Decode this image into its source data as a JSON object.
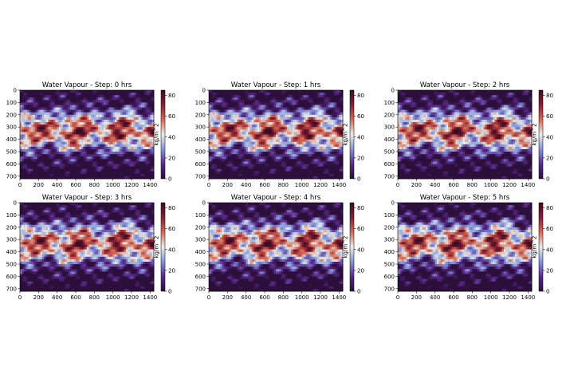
{
  "chart_data": [
    {
      "type": "heatmap",
      "title": "Water Vapour - Step: 0 hrs",
      "step_hours": 0,
      "x_ticks": [
        0,
        200,
        400,
        600,
        800,
        1000,
        1200,
        1400
      ],
      "y_ticks": [
        0,
        100,
        200,
        300,
        400,
        500,
        600,
        700
      ],
      "xlim": [
        0,
        1440
      ],
      "ylim": [
        721,
        0
      ],
      "colorbar": {
        "label": "kg/m^2",
        "ticks": [
          0,
          20,
          40,
          60,
          80
        ],
        "range": [
          0,
          85
        ],
        "colormap": "twilight_shifted"
      }
    },
    {
      "type": "heatmap",
      "title": "Water Vapour - Step: 1 hrs",
      "step_hours": 1,
      "x_ticks": [
        0,
        200,
        400,
        600,
        800,
        1000,
        1200,
        1400
      ],
      "y_ticks": [
        0,
        100,
        200,
        300,
        400,
        500,
        600,
        700
      ],
      "xlim": [
        0,
        1440
      ],
      "ylim": [
        721,
        0
      ],
      "colorbar": {
        "label": "kg/m^2",
        "ticks": [
          0,
          20,
          40,
          60,
          80
        ],
        "range": [
          0,
          85
        ],
        "colormap": "twilight_shifted"
      }
    },
    {
      "type": "heatmap",
      "title": "Water Vapour - Step: 2 hrs",
      "step_hours": 2,
      "x_ticks": [
        0,
        200,
        400,
        600,
        800,
        1000,
        1200,
        1400
      ],
      "y_ticks": [
        0,
        100,
        200,
        300,
        400,
        500,
        600,
        700
      ],
      "xlim": [
        0,
        1440
      ],
      "ylim": [
        721,
        0
      ],
      "colorbar": {
        "label": "kg/m^2",
        "ticks": [
          0,
          20,
          40,
          60,
          80
        ],
        "range": [
          0,
          85
        ],
        "colormap": "twilight_shifted"
      }
    },
    {
      "type": "heatmap",
      "title": "Water Vapour - Step: 3 hrs",
      "step_hours": 3,
      "x_ticks": [
        0,
        200,
        400,
        600,
        800,
        1000,
        1200,
        1400
      ],
      "y_ticks": [
        0,
        100,
        200,
        300,
        400,
        500,
        600,
        700
      ],
      "xlim": [
        0,
        1440
      ],
      "ylim": [
        721,
        0
      ],
      "colorbar": {
        "label": "kg/m^2",
        "ticks": [
          0,
          20,
          40,
          60,
          80
        ],
        "range": [
          0,
          85
        ],
        "colormap": "twilight_shifted"
      }
    },
    {
      "type": "heatmap",
      "title": "Water Vapour - Step: 4 hrs",
      "step_hours": 4,
      "x_ticks": [
        0,
        200,
        400,
        600,
        800,
        1000,
        1200,
        1400
      ],
      "y_ticks": [
        0,
        100,
        200,
        300,
        400,
        500,
        600,
        700
      ],
      "xlim": [
        0,
        1440
      ],
      "ylim": [
        721,
        0
      ],
      "colorbar": {
        "label": "kg/m^2",
        "ticks": [
          0,
          20,
          40,
          60,
          80
        ],
        "range": [
          0,
          85
        ],
        "colormap": "twilight_shifted"
      }
    },
    {
      "type": "heatmap",
      "title": "Water Vapour - Step: 5 hrs",
      "step_hours": 5,
      "x_ticks": [
        0,
        200,
        400,
        600,
        800,
        1000,
        1200,
        1400
      ],
      "y_ticks": [
        0,
        100,
        200,
        300,
        400,
        500,
        600,
        700
      ],
      "xlim": [
        0,
        1440
      ],
      "ylim": [
        721,
        0
      ],
      "colorbar": {
        "label": "kg/m^2",
        "ticks": [
          0,
          20,
          40,
          60,
          80
        ],
        "range": [
          0,
          85
        ],
        "colormap": "twilight_shifted"
      }
    }
  ],
  "colors": {
    "cmap_stops": [
      "#2d0f3b",
      "#5a2a8a",
      "#8496d8",
      "#e9ece8",
      "#d46a55",
      "#8a1f35",
      "#3a0d22"
    ]
  }
}
